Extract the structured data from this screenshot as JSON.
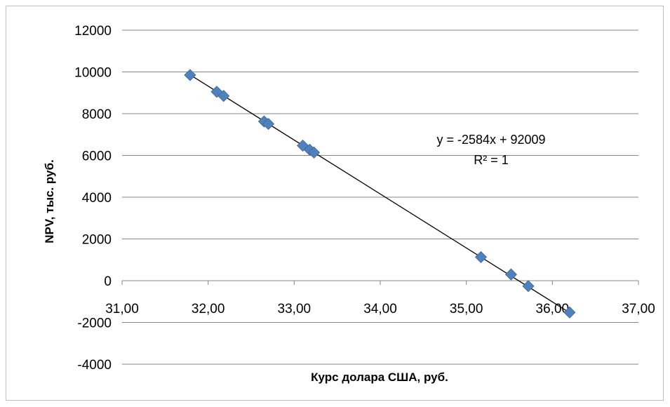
{
  "chart_data": {
    "type": "scatter",
    "title": "",
    "xlabel": "Курс долара США, руб.",
    "ylabel": "NPV, тыс. руб.",
    "xlim": [
      31,
      37
    ],
    "ylim": [
      -4000,
      12000
    ],
    "x_ticks": [
      31,
      32,
      33,
      34,
      35,
      36,
      37
    ],
    "x_tick_labels": [
      "31,00",
      "32,00",
      "33,00",
      "34,00",
      "35,00",
      "36,00",
      "37,00"
    ],
    "y_ticks": [
      -4000,
      -2000,
      0,
      2000,
      4000,
      6000,
      8000,
      10000,
      12000
    ],
    "y_tick_labels": [
      "-4000",
      "-2000",
      "0",
      "2000",
      "4000",
      "6000",
      "8000",
      "10000",
      "12000"
    ],
    "grid": "horizontal",
    "marker_color": "#4f81bd",
    "trendline_color": "#000000",
    "series": [
      {
        "x": [
          31.79,
          32.1,
          32.18,
          32.65,
          32.7,
          33.1,
          33.18,
          33.23,
          35.17,
          35.52,
          35.72,
          36.2
        ],
        "y": [
          9850,
          9050,
          8850,
          7630,
          7510,
          6470,
          6270,
          6140,
          1130,
          300,
          -260,
          -1520
        ]
      }
    ],
    "trendline": {
      "slope": -2584,
      "intercept": 92009,
      "x_range": [
        31.8,
        36.2
      ],
      "equation": "y = -2584x + 92009",
      "r_squared": "R² = 1"
    }
  }
}
